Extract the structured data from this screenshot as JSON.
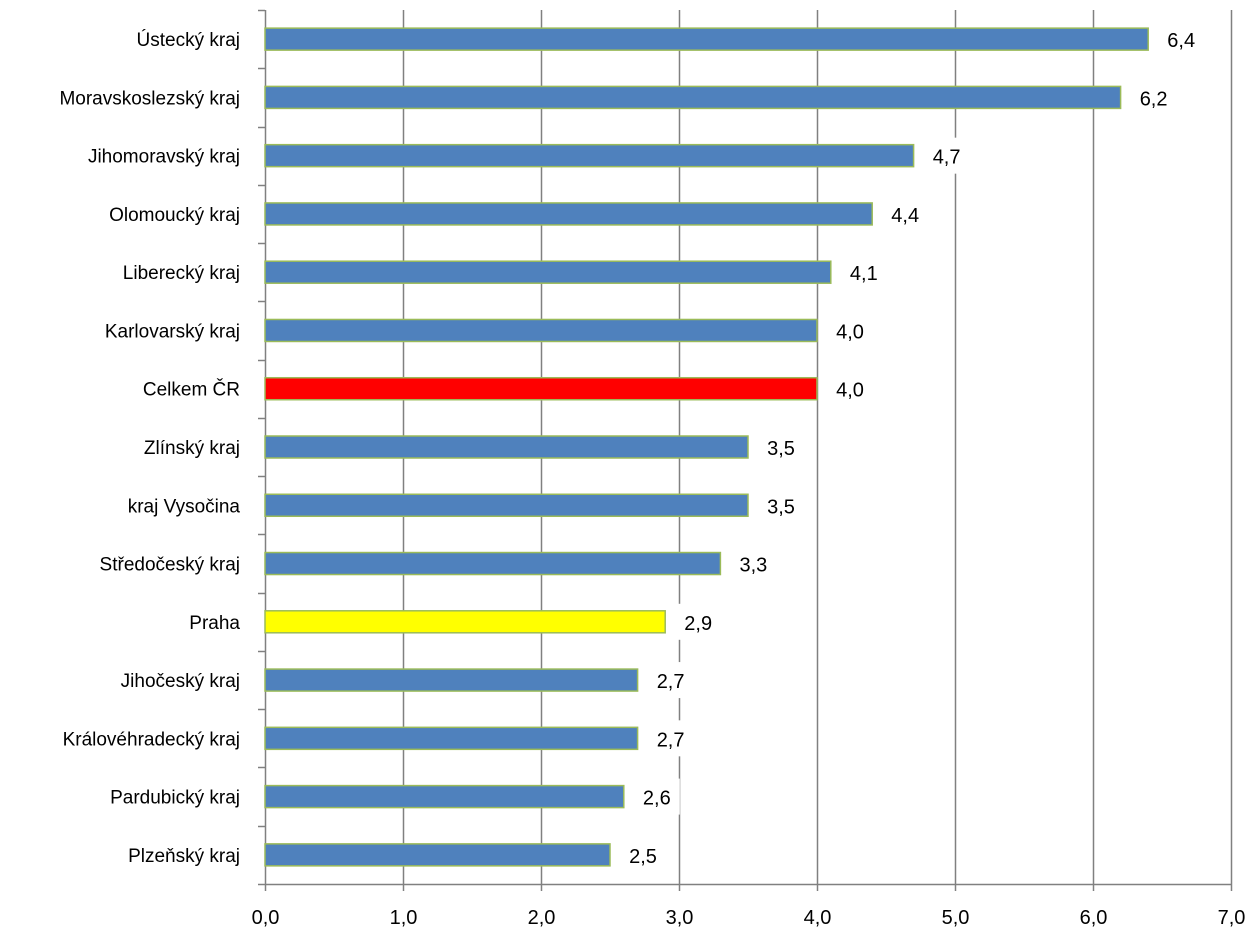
{
  "chart_data": {
    "type": "bar",
    "orientation": "horizontal",
    "categories": [
      "Ústecký kraj",
      "Moravskoslezský kraj",
      "Jihomoravský kraj",
      "Olomoucký kraj",
      "Liberecký kraj",
      "Karlovarský kraj",
      "Celkem ČR",
      "Zlínský kraj",
      "kraj Vysočina",
      "Středočeský kraj",
      "Praha",
      "Jihočeský kraj",
      "Královéhradecký kraj",
      "Pardubický kraj",
      "Plzeňský kraj"
    ],
    "values": [
      6.4,
      6.2,
      4.7,
      4.4,
      4.1,
      4.0,
      4.0,
      3.5,
      3.5,
      3.3,
      2.9,
      2.7,
      2.7,
      2.6,
      2.5
    ],
    "value_labels": [
      "6,4",
      "6,2",
      "4,7",
      "4,4",
      "4,1",
      "4,0",
      "4,0",
      "3,5",
      "3,5",
      "3,3",
      "2,9",
      "2,7",
      "2,7",
      "2,6",
      "2,5"
    ],
    "bar_colors": [
      "#4F81BD",
      "#4F81BD",
      "#4F81BD",
      "#4F81BD",
      "#4F81BD",
      "#4F81BD",
      "#FF0000",
      "#4F81BD",
      "#4F81BD",
      "#4F81BD",
      "#FFFF00",
      "#4F81BD",
      "#4F81BD",
      "#4F81BD",
      "#4F81BD"
    ],
    "bar_border_color": "#9BBB59",
    "xlim": [
      0,
      7
    ],
    "x_ticks": [
      0,
      1,
      2,
      3,
      4,
      5,
      6,
      7
    ],
    "x_tick_labels": [
      "0,0",
      "1,0",
      "2,0",
      "3,0",
      "4,0",
      "5,0",
      "6,0",
      "7,0"
    ],
    "grid": true,
    "grid_color": "#808080",
    "title": "",
    "xlabel": "",
    "ylabel": ""
  }
}
